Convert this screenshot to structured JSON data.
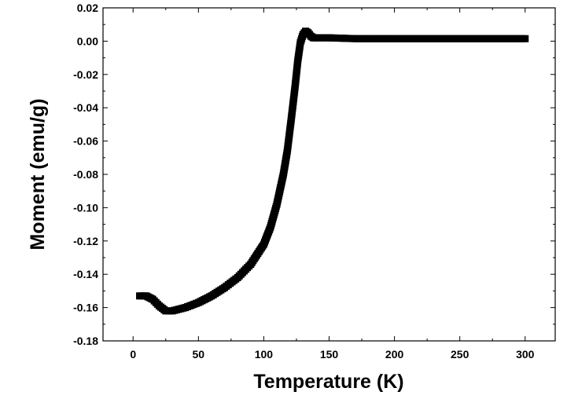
{
  "chart_data": {
    "type": "line",
    "title": "",
    "xlabel": "Temperature (K)",
    "ylabel": "Moment (emu/g)",
    "xlim": [
      -23,
      323
    ],
    "ylim": [
      -0.18,
      0.02
    ],
    "xticks": [
      0,
      50,
      100,
      150,
      200,
      250,
      300
    ],
    "xtick_labels": [
      "0",
      "50",
      "100",
      "150",
      "200",
      "250",
      "300"
    ],
    "yticks": [
      -0.18,
      -0.16,
      -0.14,
      -0.12,
      -0.1,
      -0.08,
      -0.06,
      -0.04,
      -0.02,
      0.0,
      0.02
    ],
    "ytick_labels": [
      "-0.18",
      "-0.16",
      "-0.14",
      "-0.12",
      "-0.10",
      "-0.08",
      "-0.06",
      "-0.04",
      "-0.02",
      "0.00",
      "0.02"
    ],
    "grid": false,
    "legend": "none",
    "marker": "square",
    "color": "#000000",
    "series": [
      {
        "x": [
          5,
          10,
          15,
          20,
          25,
          30,
          40,
          50,
          60,
          70,
          80,
          90,
          100,
          105,
          110,
          115,
          118,
          121,
          124,
          126,
          128,
          130,
          132,
          134,
          136,
          138,
          140,
          150,
          170,
          200,
          250,
          300
        ],
        "y": [
          -0.153,
          -0.153,
          -0.155,
          -0.159,
          -0.162,
          -0.162,
          -0.16,
          -0.157,
          -0.153,
          -0.148,
          -0.142,
          -0.134,
          -0.122,
          -0.112,
          -0.098,
          -0.08,
          -0.066,
          -0.047,
          -0.027,
          -0.012,
          -0.001,
          0.004,
          0.006,
          0.005,
          0.003,
          0.002,
          0.002,
          0.002,
          0.0015,
          0.0015,
          0.0015,
          0.0015
        ]
      }
    ]
  }
}
